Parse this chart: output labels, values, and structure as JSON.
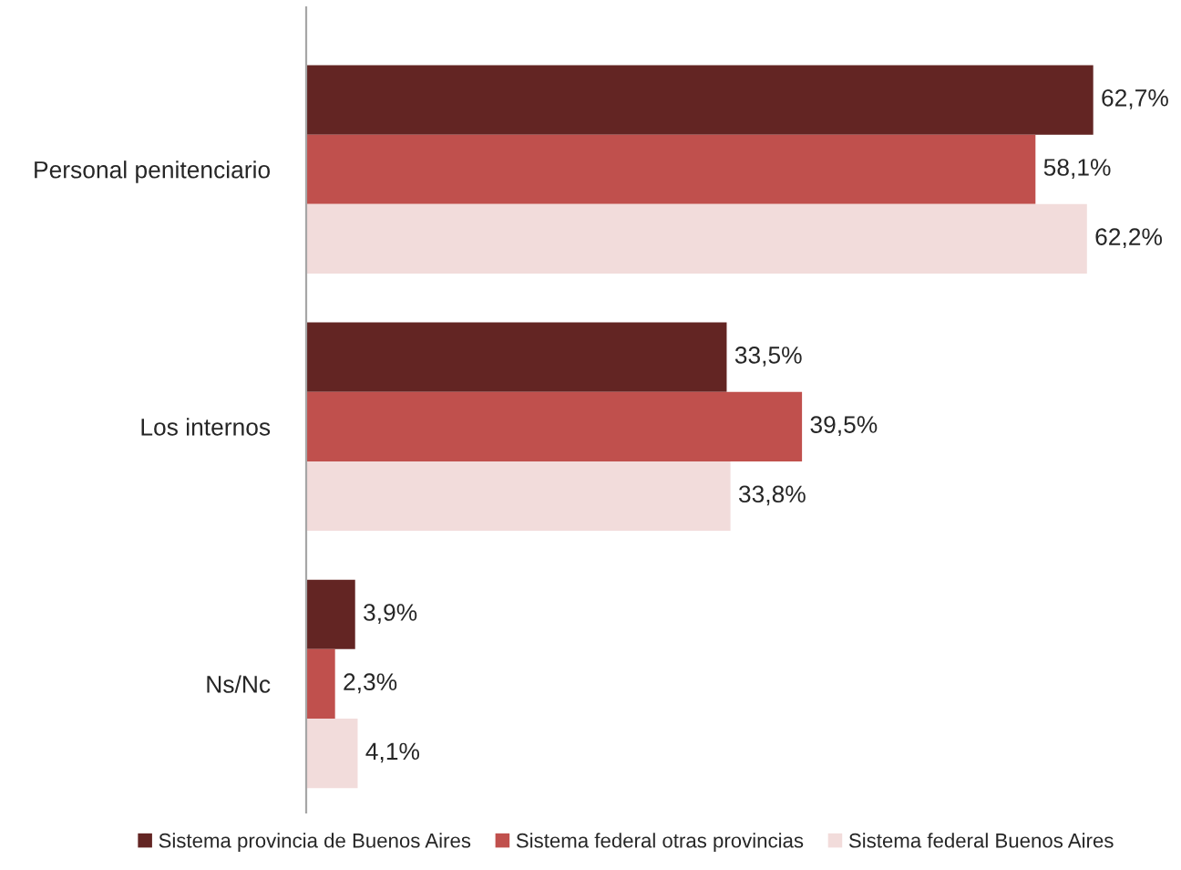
{
  "chart_data": {
    "type": "bar",
    "orientation": "horizontal",
    "categories": [
      "Personal penitenciario",
      "Los internos",
      "Ns/Nc"
    ],
    "series": [
      {
        "name": "Sistema provincia de Buenos Aires",
        "color": "#632523",
        "values": [
          62.7,
          33.5,
          3.9
        ],
        "value_labels": [
          "62,7%",
          "33,5%",
          "3,9%"
        ]
      },
      {
        "name": "Sistema federal otras provincias",
        "color": "#c0504d",
        "values": [
          58.1,
          39.5,
          2.3
        ],
        "value_labels": [
          "58,1%",
          "39,5%",
          "2,3%"
        ]
      },
      {
        "name": "Sistema federal Buenos Aires",
        "color": "#f2dcdb",
        "values": [
          62.2,
          33.8,
          4.1
        ],
        "value_labels": [
          "62,2%",
          "33,8%",
          "4,1%"
        ]
      }
    ],
    "legend": "bottom"
  }
}
